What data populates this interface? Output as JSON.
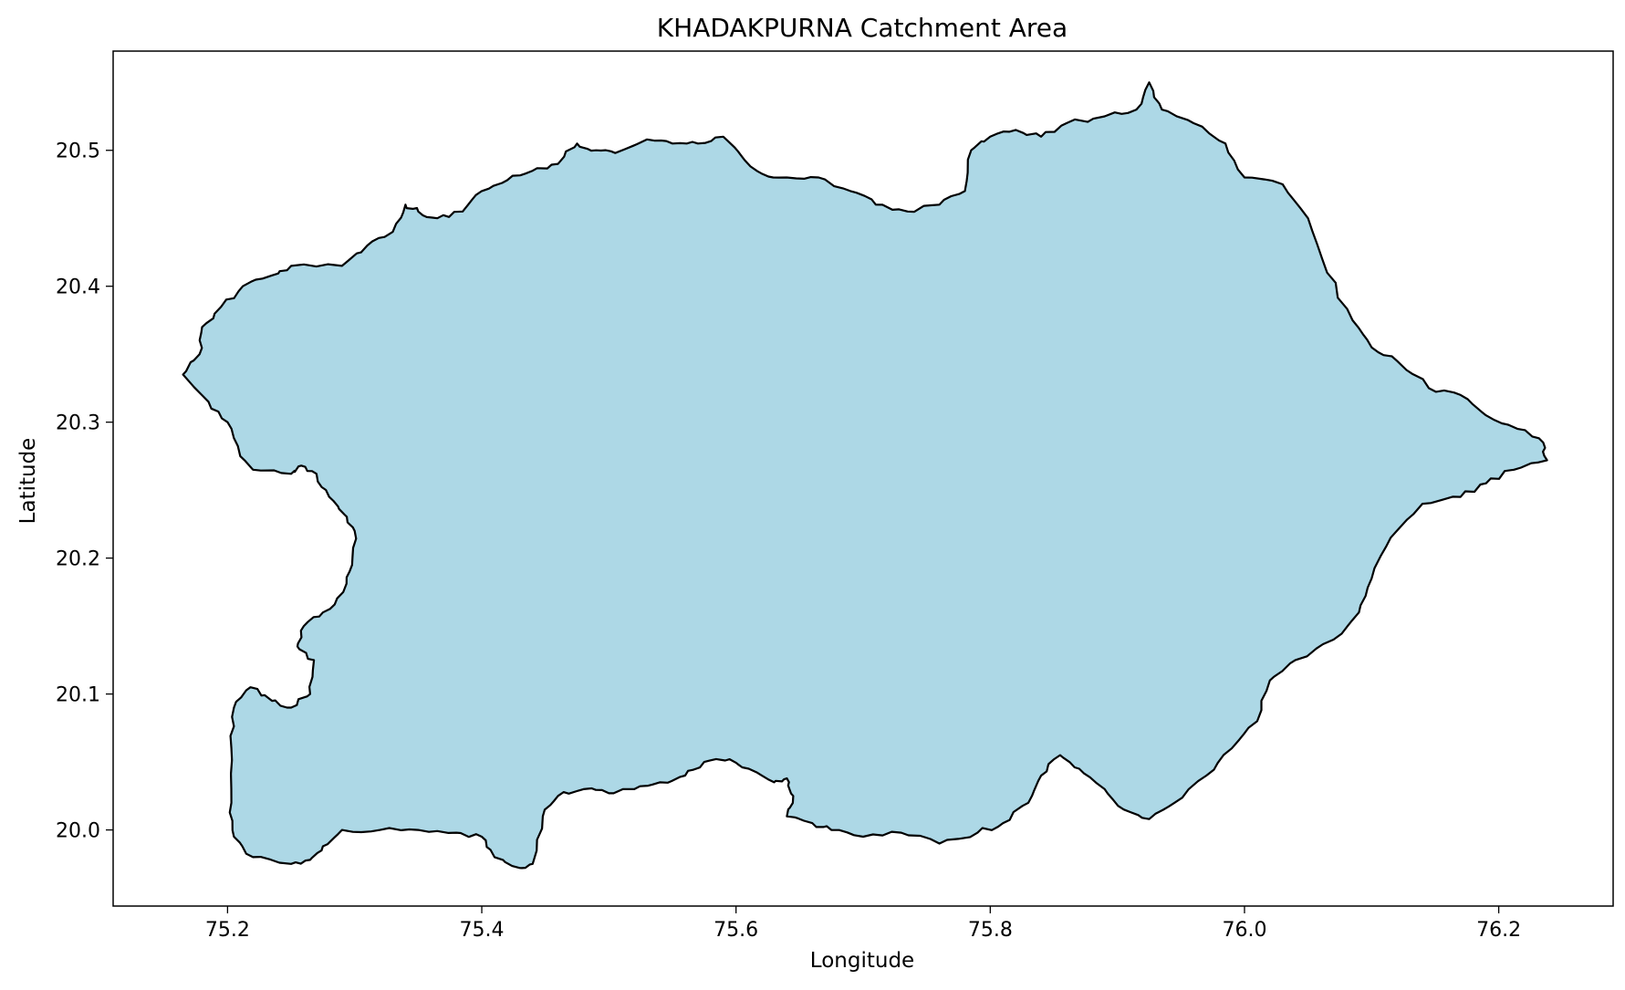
{
  "title": "KHADAKPURNA Catchment Area",
  "xlabel": "Longitude",
  "ylabel": "Latitude",
  "colors": {
    "fill": "#add8e6",
    "edge": "#000000",
    "frame": "#000000",
    "background": "#ffffff"
  },
  "chart_data": {
    "type": "map",
    "title": "KHADAKPURNA Catchment Area",
    "xlabel": "Longitude",
    "ylabel": "Latitude",
    "xlim": [
      75.11,
      76.29
    ],
    "ylim": [
      19.944,
      20.573
    ],
    "x_ticks": [
      75.2,
      75.4,
      75.6,
      75.8,
      76.0,
      76.2
    ],
    "x_tick_labels": [
      "75.2",
      "75.4",
      "75.6",
      "75.8",
      "76.0",
      "76.2"
    ],
    "y_ticks": [
      20.0,
      20.1,
      20.2,
      20.3,
      20.4,
      20.5
    ],
    "y_tick_labels": [
      "20.0",
      "20.1",
      "20.2",
      "20.3",
      "20.4",
      "20.5"
    ],
    "grid": false,
    "polygon": {
      "name": "KHADAKPURNA",
      "coordinates": [
        [
          75.165,
          20.335
        ],
        [
          75.185,
          20.315
        ],
        [
          75.2,
          20.3
        ],
        [
          75.21,
          20.275
        ],
        [
          75.22,
          20.265
        ],
        [
          75.25,
          20.262
        ],
        [
          75.258,
          20.268
        ],
        [
          75.27,
          20.262
        ],
        [
          75.28,
          20.245
        ],
        [
          75.292,
          20.232
        ],
        [
          75.3,
          20.22
        ],
        [
          75.298,
          20.195
        ],
        [
          75.291,
          20.175
        ],
        [
          75.275,
          20.16
        ],
        [
          75.26,
          20.15
        ],
        [
          75.255,
          20.135
        ],
        [
          75.268,
          20.125
        ],
        [
          75.265,
          20.1
        ],
        [
          75.25,
          20.09
        ],
        [
          75.235,
          20.095
        ],
        [
          75.218,
          20.105
        ],
        [
          75.205,
          20.09
        ],
        [
          75.203,
          20.06
        ],
        [
          75.203,
          20.02
        ],
        [
          75.205,
          19.995
        ],
        [
          75.22,
          19.98
        ],
        [
          75.25,
          19.975
        ],
        [
          75.265,
          19.978
        ],
        [
          75.275,
          19.988
        ],
        [
          75.29,
          20.0
        ],
        [
          75.32,
          20.0
        ],
        [
          75.35,
          20.0
        ],
        [
          75.38,
          19.998
        ],
        [
          75.4,
          19.995
        ],
        [
          75.41,
          19.98
        ],
        [
          75.43,
          19.972
        ],
        [
          75.44,
          19.975
        ],
        [
          75.448,
          20.01
        ],
        [
          75.46,
          20.025
        ],
        [
          75.48,
          20.03
        ],
        [
          75.5,
          20.027
        ],
        [
          75.52,
          20.03
        ],
        [
          75.54,
          20.035
        ],
        [
          75.56,
          20.04
        ],
        [
          75.575,
          20.05
        ],
        [
          75.595,
          20.052
        ],
        [
          75.61,
          20.045
        ],
        [
          75.63,
          20.035
        ],
        [
          75.64,
          20.038
        ],
        [
          75.645,
          20.025
        ],
        [
          75.64,
          20.01
        ],
        [
          75.66,
          20.005
        ],
        [
          75.675,
          20.0
        ],
        [
          75.7,
          19.995
        ],
        [
          75.73,
          19.998
        ],
        [
          75.76,
          19.99
        ],
        [
          75.79,
          19.998
        ],
        [
          75.81,
          20.005
        ],
        [
          75.83,
          20.02
        ],
        [
          75.84,
          20.04
        ],
        [
          75.855,
          20.055
        ],
        [
          75.87,
          20.045
        ],
        [
          75.89,
          20.03
        ],
        [
          75.905,
          20.015
        ],
        [
          75.925,
          20.008
        ],
        [
          75.945,
          20.02
        ],
        [
          75.97,
          20.04
        ],
        [
          75.99,
          20.06
        ],
        [
          76.01,
          20.08
        ],
        [
          76.02,
          20.11
        ],
        [
          76.04,
          20.125
        ],
        [
          76.07,
          20.14
        ],
        [
          76.09,
          20.16
        ],
        [
          76.1,
          20.185
        ],
        [
          76.115,
          20.215
        ],
        [
          76.14,
          20.24
        ],
        [
          76.17,
          20.245
        ],
        [
          76.19,
          20.255
        ],
        [
          76.212,
          20.265
        ],
        [
          76.238,
          20.272
        ],
        [
          76.235,
          20.285
        ],
        [
          76.215,
          20.295
        ],
        [
          76.19,
          20.305
        ],
        [
          76.17,
          20.32
        ],
        [
          76.145,
          20.325
        ],
        [
          76.12,
          20.345
        ],
        [
          76.1,
          20.355
        ],
        [
          76.085,
          20.375
        ],
        [
          76.065,
          20.41
        ],
        [
          76.05,
          20.45
        ],
        [
          76.03,
          20.475
        ],
        [
          76.0,
          20.48
        ],
        [
          75.985,
          20.505
        ],
        [
          75.96,
          20.52
        ],
        [
          75.935,
          20.53
        ],
        [
          75.925,
          20.55
        ],
        [
          75.915,
          20.53
        ],
        [
          75.89,
          20.525
        ],
        [
          75.86,
          20.52
        ],
        [
          75.84,
          20.51
        ],
        [
          75.82,
          20.515
        ],
        [
          75.8,
          20.51
        ],
        [
          75.785,
          20.5
        ],
        [
          75.78,
          20.47
        ],
        [
          75.76,
          20.46
        ],
        [
          75.735,
          20.455
        ],
        [
          75.71,
          20.46
        ],
        [
          75.69,
          20.47
        ],
        [
          75.665,
          20.48
        ],
        [
          75.64,
          20.48
        ],
        [
          75.62,
          20.483
        ],
        [
          75.605,
          20.495
        ],
        [
          75.59,
          20.51
        ],
        [
          75.57,
          20.505
        ],
        [
          75.55,
          20.505
        ],
        [
          75.53,
          20.508
        ],
        [
          75.505,
          20.498
        ],
        [
          75.49,
          20.5
        ],
        [
          75.475,
          20.505
        ],
        [
          75.46,
          20.49
        ],
        [
          75.44,
          20.485
        ],
        [
          75.42,
          20.478
        ],
        [
          75.4,
          20.47
        ],
        [
          75.385,
          20.455
        ],
        [
          75.365,
          20.45
        ],
        [
          75.35,
          20.455
        ],
        [
          75.34,
          20.46
        ],
        [
          75.33,
          20.44
        ],
        [
          75.31,
          20.43
        ],
        [
          75.29,
          20.415
        ],
        [
          75.25,
          20.415
        ],
        [
          75.235,
          20.408
        ],
        [
          75.212,
          20.4
        ],
        [
          75.195,
          20.385
        ],
        [
          75.18,
          20.37
        ],
        [
          75.178,
          20.35
        ],
        [
          75.165,
          20.335
        ]
      ]
    }
  }
}
